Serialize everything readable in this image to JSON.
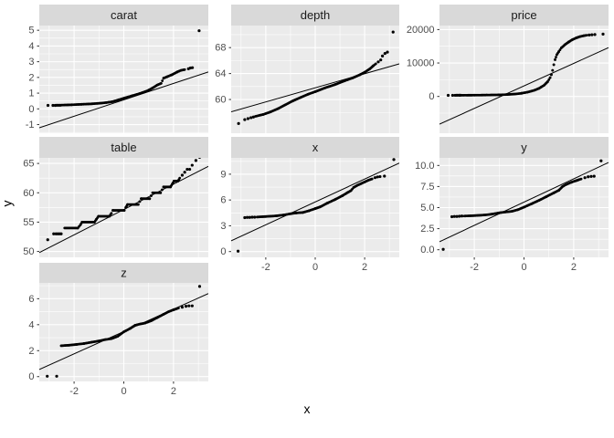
{
  "figure": {
    "x_axis_title": "x",
    "y_axis_title": "y",
    "colors": {
      "background": "#FFFFFF",
      "panel_bg": "#EBEBEB",
      "strip_bg": "#D9D9D9",
      "grid": "#FFFFFF",
      "point": "#000000",
      "ref_line": "#000000",
      "tick_text": "#4D4D4D",
      "strip_text": "#1A1A1A",
      "tick_mark": "#333333"
    }
  },
  "chart_data": {
    "type": "scatter",
    "subtype": "qq-plot-facets",
    "xlabel": "x",
    "ylabel": "y",
    "xlim": [
      -3.4,
      3.4
    ],
    "x_ticks": [
      {
        "v": -2,
        "t": "-2"
      },
      {
        "v": 0,
        "t": "0"
      },
      {
        "v": 2,
        "t": "2"
      }
    ],
    "facets": [
      {
        "label": "carat",
        "row": 0,
        "col": 0,
        "show_x_axis": false,
        "ylim": [
          -1.55,
          5.3
        ],
        "y_ticks": [
          {
            "v": 5,
            "t": "5"
          },
          {
            "v": 4,
            "t": "4"
          },
          {
            "v": 3,
            "t": "3"
          },
          {
            "v": 2,
            "t": "2"
          },
          {
            "v": 1,
            "t": "1"
          },
          {
            "v": 0,
            "t": "0"
          },
          {
            "v": -1,
            "t": "-1"
          }
        ],
        "ref_line": [
          -3.4,
          -1.2,
          3.4,
          2.35
        ],
        "curve": [
          [
            -2.5,
            0.24
          ],
          [
            -2.1,
            0.26
          ],
          [
            -1.7,
            0.29
          ],
          [
            -1.3,
            0.32
          ],
          [
            -0.95,
            0.36
          ],
          [
            -0.7,
            0.4
          ],
          [
            -0.45,
            0.46
          ],
          [
            -0.2,
            0.58
          ],
          [
            0.05,
            0.7
          ],
          [
            0.35,
            0.84
          ],
          [
            0.65,
            0.98
          ],
          [
            0.95,
            1.15
          ],
          [
            1.15,
            1.32
          ],
          [
            1.35,
            1.52
          ],
          [
            1.5,
            1.62
          ],
          [
            1.6,
            1.95
          ],
          [
            1.75,
            2.05
          ],
          [
            1.95,
            2.18
          ],
          [
            2.15,
            2.35
          ],
          [
            2.3,
            2.45
          ],
          [
            2.45,
            2.5
          ]
        ],
        "dots": [
          [
            -3.05,
            0.22
          ],
          [
            -2.85,
            0.22
          ],
          [
            -2.76,
            0.22
          ],
          [
            -2.7,
            0.23
          ],
          [
            -2.63,
            0.23
          ],
          [
            -2.56,
            0.23
          ],
          [
            2.6,
            2.55
          ],
          [
            2.68,
            2.6
          ],
          [
            2.76,
            2.62
          ],
          [
            3.03,
            4.97
          ]
        ]
      },
      {
        "label": "depth",
        "row": 0,
        "col": 1,
        "show_x_axis": false,
        "ylim": [
          54.8,
          71.4
        ],
        "y_ticks": [
          {
            "v": 68,
            "t": "68"
          },
          {
            "v": 64,
            "t": "64"
          },
          {
            "v": 60,
            "t": "60"
          }
        ],
        "ref_line": [
          -3.4,
          58.1,
          3.4,
          65.5
        ],
        "curve": [
          [
            -2.42,
            57.4
          ],
          [
            -2.1,
            57.7
          ],
          [
            -1.8,
            58.1
          ],
          [
            -1.5,
            58.6
          ],
          [
            -1.2,
            59.2
          ],
          [
            -0.9,
            59.8
          ],
          [
            -0.6,
            60.3
          ],
          [
            -0.3,
            60.8
          ],
          [
            0,
            61.2
          ],
          [
            0.4,
            61.8
          ],
          [
            0.8,
            62.3
          ],
          [
            1.2,
            62.9
          ],
          [
            1.5,
            63.3
          ],
          [
            1.8,
            63.8
          ],
          [
            2.0,
            64.2
          ],
          [
            2.2,
            64.7
          ],
          [
            2.35,
            65.2
          ],
          [
            2.45,
            65.5
          ]
        ],
        "dots": [
          [
            -3.1,
            56.3
          ],
          [
            -2.85,
            56.9
          ],
          [
            -2.72,
            57.05
          ],
          [
            -2.6,
            57.2
          ],
          [
            -2.5,
            57.3
          ],
          [
            2.55,
            65.8
          ],
          [
            2.65,
            66.1
          ],
          [
            2.72,
            66.7
          ],
          [
            2.82,
            67.1
          ],
          [
            2.92,
            67.3
          ],
          [
            3.15,
            70.4
          ]
        ]
      },
      {
        "label": "price",
        "row": 0,
        "col": 2,
        "show_x_axis": false,
        "ylim": [
          -11000,
          21200
        ],
        "y_ticks": [
          {
            "v": 20000,
            "t": "20000"
          },
          {
            "v": 10000,
            "t": "10000"
          },
          {
            "v": 0,
            "t": "0"
          }
        ],
        "ref_line": [
          -3.4,
          -8300,
          3.4,
          14600
        ],
        "curve": [
          [
            -2.5,
            360
          ],
          [
            -2.0,
            380
          ],
          [
            -1.5,
            420
          ],
          [
            -1.0,
            480
          ],
          [
            -0.7,
            560
          ],
          [
            -0.4,
            700
          ],
          [
            -0.1,
            950
          ],
          [
            0.15,
            1300
          ],
          [
            0.4,
            1800
          ],
          [
            0.6,
            2400
          ],
          [
            0.8,
            3300
          ],
          [
            0.95,
            4400
          ],
          [
            1.05,
            5600
          ],
          [
            1.1,
            6500
          ],
          [
            1.15,
            7800
          ],
          [
            1.2,
            9500
          ],
          [
            1.25,
            11000
          ],
          [
            1.32,
            12500
          ],
          [
            1.4,
            13400
          ],
          [
            1.5,
            14500
          ],
          [
            1.65,
            15500
          ],
          [
            1.8,
            16300
          ],
          [
            1.95,
            17000
          ],
          [
            2.1,
            17500
          ],
          [
            2.25,
            17900
          ],
          [
            2.4,
            18150
          ],
          [
            2.52,
            18300
          ]
        ],
        "dots": [
          [
            -3.05,
            330
          ],
          [
            -2.87,
            340
          ],
          [
            -2.77,
            345
          ],
          [
            -2.7,
            350
          ],
          [
            -2.62,
            350
          ],
          [
            -2.56,
            355
          ],
          [
            2.62,
            18380
          ],
          [
            2.73,
            18450
          ],
          [
            2.85,
            18520
          ],
          [
            3.18,
            18650
          ]
        ]
      },
      {
        "label": "table",
        "row": 1,
        "col": 0,
        "show_x_axis": false,
        "ylim": [
          49.0,
          65.95
        ],
        "y_ticks": [
          {
            "v": 65,
            "t": "65"
          },
          {
            "v": 60,
            "t": "60"
          },
          {
            "v": 55,
            "t": "55"
          },
          {
            "v": 50,
            "t": "50"
          }
        ],
        "ref_line": [
          -3.4,
          49.8,
          3.4,
          64.5
        ],
        "curve": [
          [
            -2.38,
            54
          ],
          [
            -1.85,
            54
          ],
          [
            -1.75,
            54.5
          ],
          [
            -1.68,
            55
          ],
          [
            -1.18,
            55
          ],
          [
            -1.1,
            55.5
          ],
          [
            -1.02,
            56
          ],
          [
            -0.58,
            56
          ],
          [
            -0.5,
            56.5
          ],
          [
            -0.44,
            57
          ],
          [
            0.02,
            57
          ],
          [
            0.08,
            57.5
          ],
          [
            0.15,
            58
          ],
          [
            0.58,
            58
          ],
          [
            0.64,
            58.5
          ],
          [
            0.7,
            59
          ],
          [
            1.04,
            59
          ],
          [
            1.1,
            59.5
          ],
          [
            1.16,
            60
          ],
          [
            1.48,
            60
          ],
          [
            1.54,
            60.5
          ],
          [
            1.6,
            61
          ],
          [
            1.88,
            61
          ],
          [
            1.95,
            61.5
          ],
          [
            2.02,
            62
          ],
          [
            2.18,
            62
          ],
          [
            2.25,
            62.5
          ]
        ],
        "dots": [
          [
            -3.06,
            52
          ],
          [
            -2.82,
            53
          ],
          [
            -2.73,
            53
          ],
          [
            -2.66,
            53
          ],
          [
            -2.59,
            53
          ],
          [
            -2.52,
            53
          ],
          [
            2.35,
            63
          ],
          [
            2.45,
            63.5
          ],
          [
            2.55,
            64
          ],
          [
            2.65,
            64
          ],
          [
            2.75,
            64.7
          ],
          [
            2.9,
            65.5
          ],
          [
            3.05,
            66.05
          ]
        ]
      },
      {
        "label": "x",
        "row": 1,
        "col": 1,
        "show_x_axis": true,
        "ylim": [
          -0.67,
          10.9
        ],
        "y_ticks": [
          {
            "v": 9,
            "t": "9"
          },
          {
            "v": 6,
            "t": "6"
          },
          {
            "v": 3,
            "t": "3"
          },
          {
            "v": 0,
            "t": "0"
          }
        ],
        "ref_line": [
          -3.4,
          1.25,
          3.4,
          10.3
        ],
        "curve": [
          [
            -2.35,
            4.02
          ],
          [
            -2.0,
            4.08
          ],
          [
            -1.6,
            4.15
          ],
          [
            -1.3,
            4.25
          ],
          [
            -1.0,
            4.4
          ],
          [
            -0.75,
            4.5
          ],
          [
            -0.5,
            4.55
          ],
          [
            -0.25,
            4.75
          ],
          [
            0,
            5.0
          ],
          [
            0.2,
            5.2
          ],
          [
            0.5,
            5.65
          ],
          [
            0.8,
            6.05
          ],
          [
            1.1,
            6.5
          ],
          [
            1.3,
            6.85
          ],
          [
            1.45,
            7.1
          ],
          [
            1.55,
            7.45
          ],
          [
            1.7,
            7.7
          ],
          [
            1.85,
            7.9
          ],
          [
            2.0,
            8.1
          ],
          [
            2.15,
            8.3
          ],
          [
            2.3,
            8.45
          ]
        ],
        "dots": [
          [
            -3.12,
            0.05
          ],
          [
            -2.85,
            3.95
          ],
          [
            -2.75,
            3.97
          ],
          [
            -2.65,
            3.97
          ],
          [
            -2.55,
            4.0
          ],
          [
            -2.45,
            4.0
          ],
          [
            2.42,
            8.6
          ],
          [
            2.52,
            8.68
          ],
          [
            2.62,
            8.72
          ],
          [
            2.8,
            8.78
          ],
          [
            3.18,
            10.7
          ]
        ]
      },
      {
        "label": "y",
        "row": 1,
        "col": 2,
        "show_x_axis": true,
        "ylim": [
          -0.9,
          10.9
        ],
        "y_ticks": [
          {
            "v": 10,
            "t": "10.0"
          },
          {
            "v": 7.5,
            "t": "7.5"
          },
          {
            "v": 5,
            "t": "5.0"
          },
          {
            "v": 2.5,
            "t": "2.5"
          },
          {
            "v": 0,
            "t": "0.0"
          }
        ],
        "ref_line": [
          -3.4,
          0.95,
          3.4,
          10.35
        ],
        "curve": [
          [
            -2.4,
            4.0
          ],
          [
            -2.0,
            4.05
          ],
          [
            -1.6,
            4.12
          ],
          [
            -1.3,
            4.22
          ],
          [
            -1.0,
            4.38
          ],
          [
            -0.75,
            4.48
          ],
          [
            -0.5,
            4.55
          ],
          [
            -0.25,
            4.75
          ],
          [
            0,
            5.05
          ],
          [
            0.3,
            5.45
          ],
          [
            0.6,
            5.85
          ],
          [
            0.9,
            6.3
          ],
          [
            1.2,
            6.75
          ],
          [
            1.4,
            7.05
          ],
          [
            1.55,
            7.5
          ],
          [
            1.7,
            7.75
          ],
          [
            1.9,
            8.0
          ],
          [
            2.1,
            8.2
          ],
          [
            2.3,
            8.4
          ]
        ],
        "dots": [
          [
            -3.25,
            0.05
          ],
          [
            -2.9,
            3.92
          ],
          [
            -2.8,
            3.95
          ],
          [
            -2.7,
            3.95
          ],
          [
            -2.6,
            3.97
          ],
          [
            -2.5,
            4.0
          ],
          [
            2.45,
            8.55
          ],
          [
            2.58,
            8.65
          ],
          [
            2.7,
            8.7
          ],
          [
            2.82,
            8.72
          ],
          [
            3.1,
            10.55
          ]
        ]
      },
      {
        "label": "z",
        "row": 2,
        "col": 0,
        "show_x_axis": true,
        "ylim": [
          -0.37,
          7.22
        ],
        "y_ticks": [
          {
            "v": 6,
            "t": "6"
          },
          {
            "v": 4,
            "t": "4"
          },
          {
            "v": 2,
            "t": "2"
          },
          {
            "v": 0,
            "t": "0"
          }
        ],
        "ref_line": [
          -3.4,
          0.55,
          3.4,
          6.4
        ],
        "curve": [
          [
            -2.52,
            2.38
          ],
          [
            -2.2,
            2.42
          ],
          [
            -1.9,
            2.48
          ],
          [
            -1.6,
            2.55
          ],
          [
            -1.3,
            2.65
          ],
          [
            -1.0,
            2.75
          ],
          [
            -0.75,
            2.85
          ],
          [
            -0.5,
            2.92
          ],
          [
            -0.25,
            3.1
          ],
          [
            0,
            3.45
          ],
          [
            0.25,
            3.7
          ],
          [
            0.45,
            3.95
          ],
          [
            0.65,
            4.05
          ],
          [
            0.85,
            4.12
          ],
          [
            1.1,
            4.3
          ],
          [
            1.35,
            4.55
          ],
          [
            1.6,
            4.8
          ],
          [
            1.8,
            5.0
          ],
          [
            2.0,
            5.15
          ],
          [
            2.2,
            5.28
          ]
        ],
        "dots": [
          [
            -3.08,
            0.03
          ],
          [
            -2.7,
            0.03
          ],
          [
            2.35,
            5.35
          ],
          [
            2.5,
            5.42
          ],
          [
            2.62,
            5.45
          ],
          [
            2.75,
            5.45
          ],
          [
            3.05,
            6.95
          ]
        ]
      }
    ]
  }
}
